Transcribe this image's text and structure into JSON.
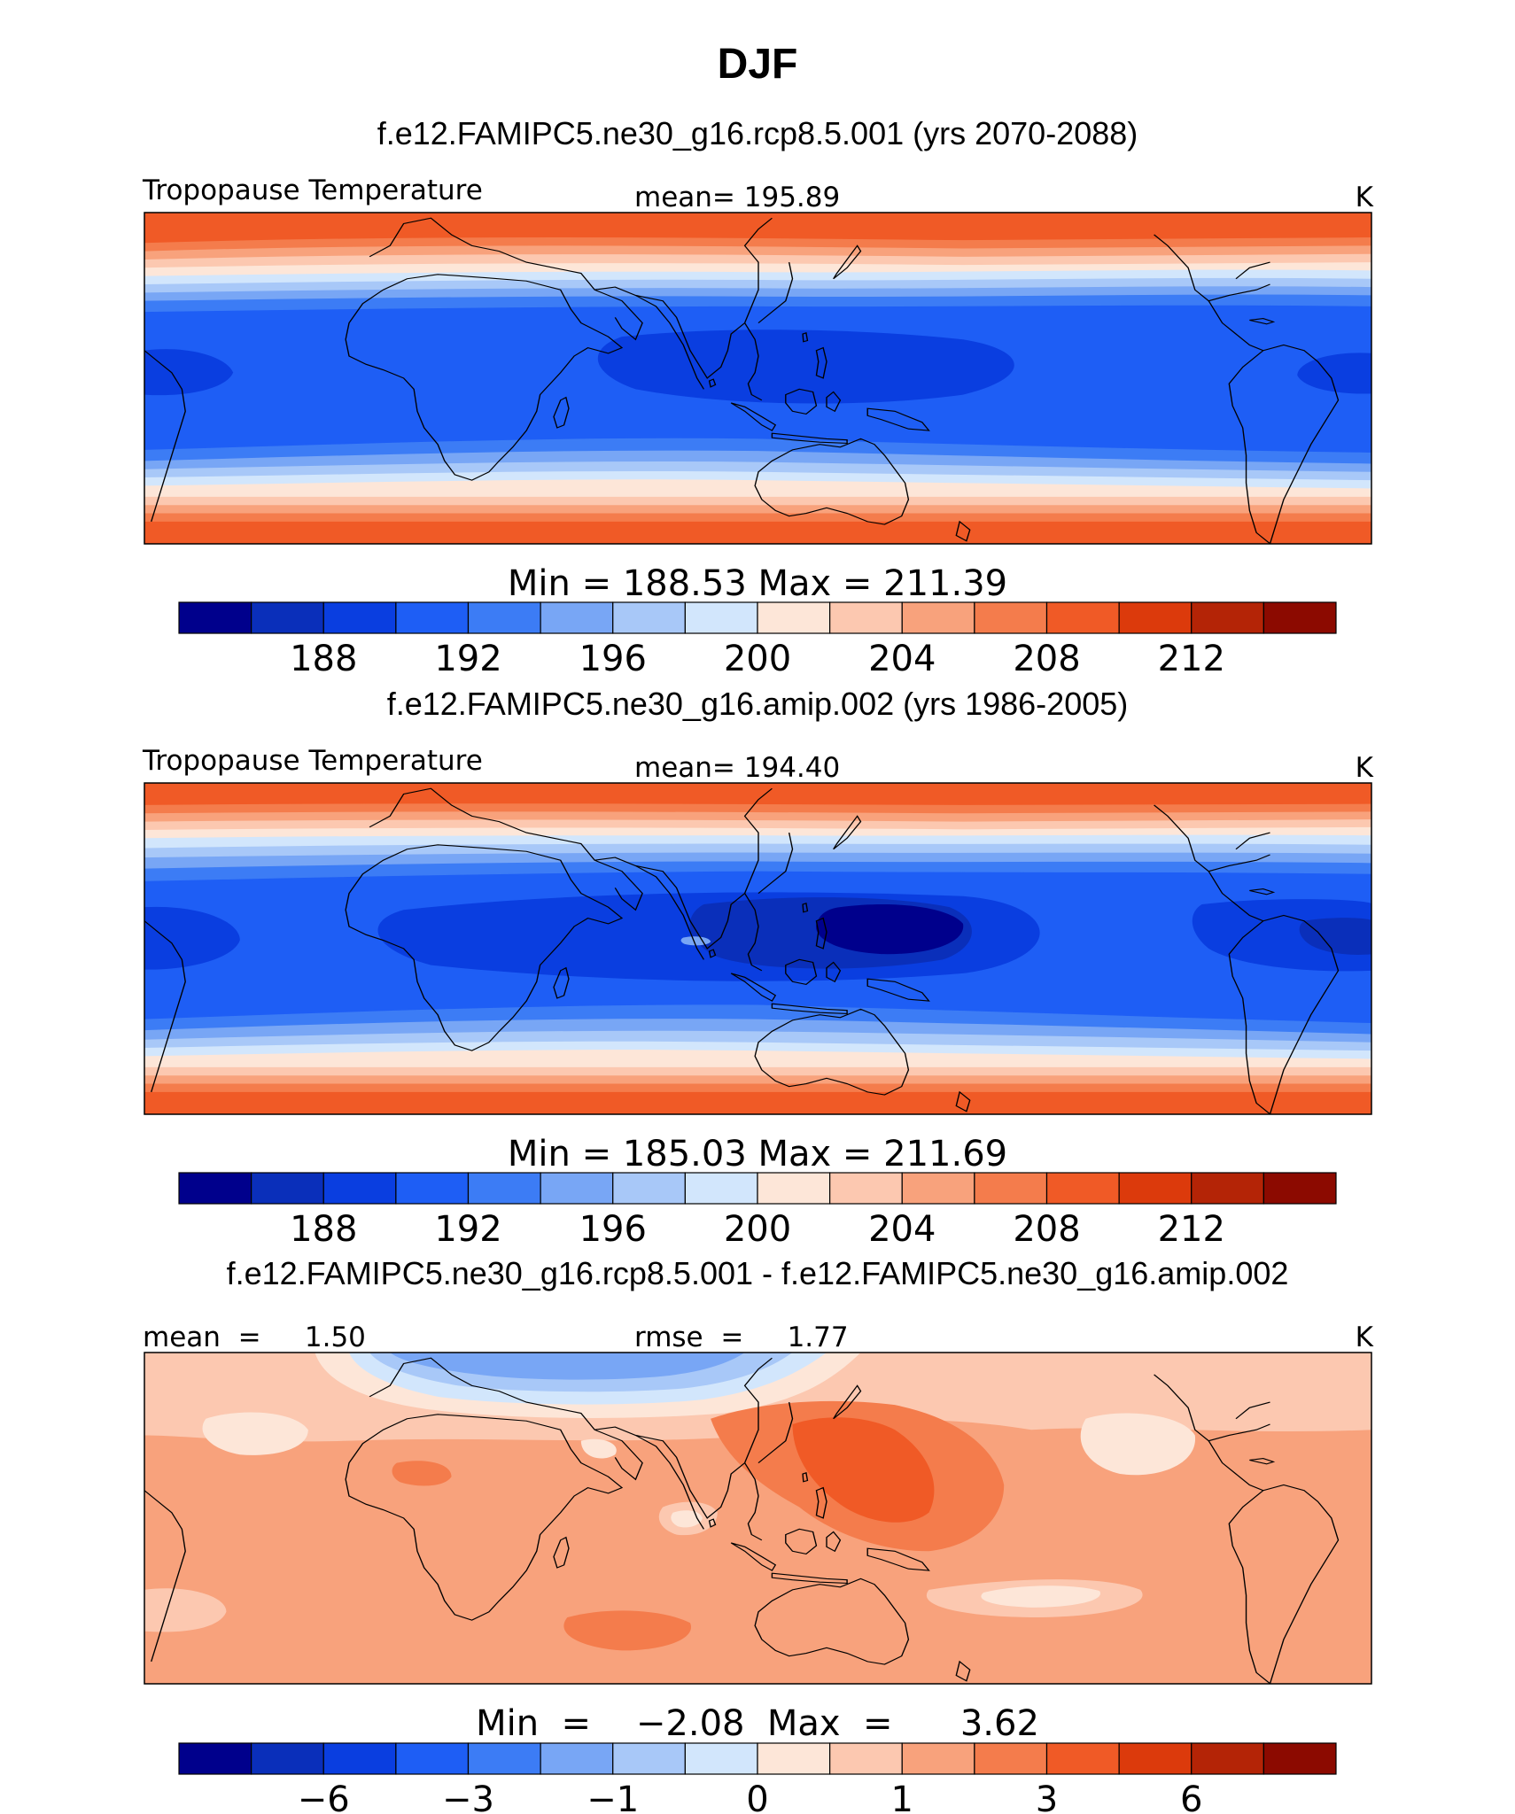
{
  "figure_title": "DJF",
  "colors": {
    "fill_scale": [
      "#00008c",
      "#0a2fba",
      "#0a3ee0",
      "#1e5ef5",
      "#3c7cf5",
      "#78a6f5",
      "#a8c8f8",
      "#d2e6fc",
      "#fde6d8",
      "#fcc8b0",
      "#f8a27c",
      "#f47c4c",
      "#f05a26",
      "#dc3a0c",
      "#b42406",
      "#8c0a00"
    ],
    "coastline": "#000000"
  },
  "chart_data": [
    {
      "type": "contour-map",
      "subtitle": "f.e12.FAMIPC5.ne30_g16.rcp8.5.001 (yrs 2070-2088)",
      "left_label": "Tropopause Temperature",
      "center_label": "mean=  195.89",
      "units": "K",
      "range_text": "Min  =  188.53  Max  =  211.39",
      "min": 188.53,
      "max": 211.39,
      "mean": 195.89,
      "colorbar": {
        "levels": [
          186,
          188,
          190,
          192,
          194,
          196,
          198,
          200,
          202,
          204,
          206,
          208,
          210,
          212,
          214
        ],
        "tick_labels": [
          "188",
          "192",
          "196",
          "200",
          "204",
          "208",
          "212"
        ]
      }
    },
    {
      "type": "contour-map",
      "subtitle": "f.e12.FAMIPC5.ne30_g16.amip.002 (yrs 1986-2005)",
      "left_label": "Tropopause Temperature",
      "center_label": "mean=  194.40",
      "units": "K",
      "range_text": "Min  =  185.03  Max  =  211.69",
      "min": 185.03,
      "max": 211.69,
      "mean": 194.4,
      "colorbar": {
        "levels": [
          186,
          188,
          190,
          192,
          194,
          196,
          198,
          200,
          202,
          204,
          206,
          208,
          210,
          212,
          214
        ],
        "tick_labels": [
          "188",
          "192",
          "196",
          "200",
          "204",
          "208",
          "212"
        ]
      }
    },
    {
      "type": "contour-map",
      "subtitle": "f.e12.FAMIPC5.ne30_g16.rcp8.5.001 - f.e12.FAMIPC5.ne30_g16.amip.002",
      "left_label": "mean  =     1.50",
      "center_label": "rmse  =     1.77",
      "units": "K",
      "range_text": "Min  =    −2.08  Max  =      3.62",
      "min": -2.08,
      "max": 3.62,
      "mean": 1.5,
      "rmse": 1.77,
      "colorbar": {
        "levels": [
          -8,
          -6,
          -4,
          -3,
          -2,
          -1,
          -0.5,
          0,
          0.5,
          1,
          2,
          3,
          4,
          6,
          8
        ],
        "tick_labels": [
          "−6",
          "−3",
          "−1",
          "0",
          "1",
          "3",
          "6"
        ]
      }
    }
  ]
}
